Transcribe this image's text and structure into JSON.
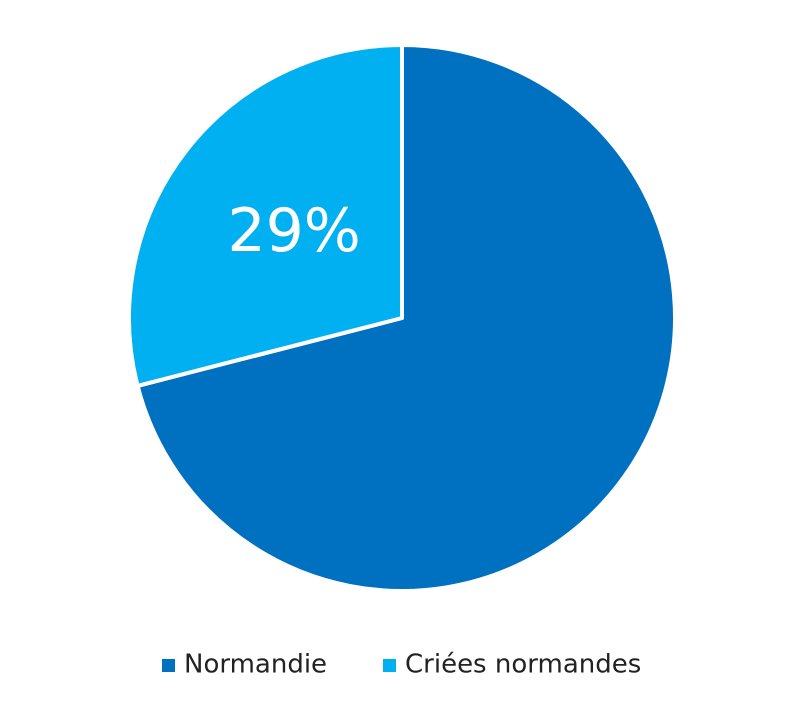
{
  "chart_data": {
    "type": "pie",
    "categories": [
      "Normandie",
      "Criées normandes"
    ],
    "values": [
      71,
      29
    ],
    "value_labels": [
      null,
      "29%"
    ],
    "colors": [
      "#0070c0",
      "#00b0f0"
    ],
    "legend": "bottom"
  }
}
